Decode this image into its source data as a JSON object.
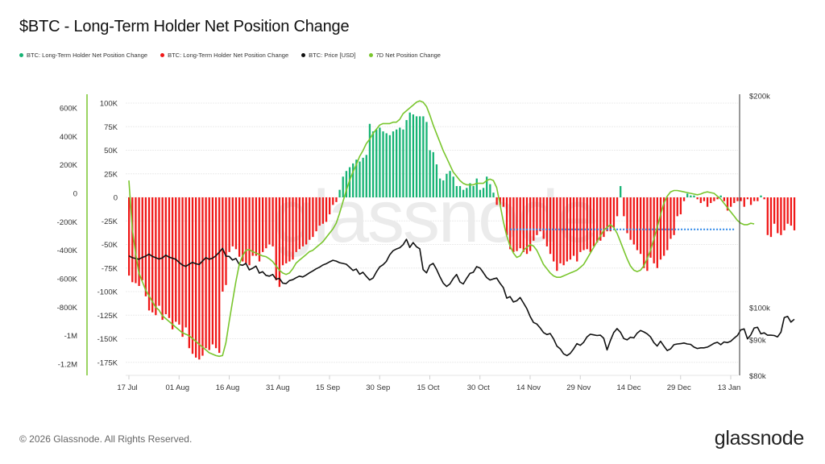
{
  "header": {
    "title": "$BTC - Long-Term Holder Net Position Change"
  },
  "legend": [
    {
      "label": "BTC: Long-Term Holder Net Position Change",
      "color": "#16b374",
      "icon": "dot-icon"
    },
    {
      "label": "BTC: Long-Term Holder Net Position Change",
      "color": "#f01818",
      "icon": "dot-icon"
    },
    {
      "label": "BTC: Price [USD]",
      "color": "#111111",
      "icon": "dot-icon"
    },
    {
      "label": "7D Net Position Change",
      "color": "#7ac62e",
      "icon": "dot-icon"
    }
  ],
  "footer": {
    "copyright": "© 2026 Glassnode. All Rights Reserved.",
    "logo": "glassnode",
    "watermark": "glassnode"
  },
  "colors": {
    "positive": "#16b374",
    "negative": "#f01818",
    "price": "#111111",
    "seven_day": "#7ac62e",
    "reference_line": "#2b86e8",
    "left_axis_line": "#7ac62e",
    "right_axis_line": "#333333"
  },
  "chart_data": {
    "type": "bar",
    "title": "$BTC - Long-Term Holder Net Position Change",
    "start_date": "17 Jul",
    "x_tick_labels": [
      "17 Jul",
      "01 Aug",
      "16 Aug",
      "31 Aug",
      "15 Sep",
      "30 Sep",
      "15 Oct",
      "30 Oct",
      "14 Nov",
      "29 Nov",
      "14 Dec",
      "29 Dec",
      "13 Jan"
    ],
    "x_tick_day_offsets": [
      0,
      15,
      30,
      45,
      60,
      75,
      90,
      105,
      120,
      135,
      150,
      165,
      180
    ],
    "axes": {
      "seven_day": {
        "ticks": [
          "600K",
          "400K",
          "200K",
          "0",
          "-200K",
          "-400K",
          "-600K",
          "-800K",
          "-1M",
          "-1.2M"
        ],
        "tick_values": [
          600000,
          400000,
          200000,
          0,
          -200000,
          -400000,
          -600000,
          -800000,
          -1000000,
          -1200000
        ],
        "range": [
          -1200000,
          600000
        ],
        "side": "far-left"
      },
      "daily": {
        "ticks": [
          "100K",
          "75K",
          "50K",
          "25K",
          "0",
          "-25K",
          "-50K",
          "-75K",
          "-100K",
          "-125K",
          "-150K",
          "-175K"
        ],
        "tick_values": [
          100000,
          75000,
          50000,
          25000,
          0,
          -25000,
          -50000,
          -75000,
          -100000,
          -125000,
          -150000,
          -175000
        ],
        "range": [
          -175000,
          100000
        ],
        "side": "left"
      },
      "price": {
        "ticks": [
          "$200k",
          "$100k",
          "$90k",
          "$80k"
        ],
        "tick_values": [
          200000,
          100000,
          90000,
          80000
        ],
        "scale": "log",
        "side": "right"
      }
    },
    "reference_line": {
      "value_daily_k": -34,
      "from_day": 114,
      "to_day": 181,
      "style": "dotted"
    },
    "series": [
      {
        "name": "BTC: Long-Term Holder Net Position Change (daily, K BTC)",
        "axis": "daily",
        "values": [
          -83,
          -90,
          -91,
          -94,
          -88,
          -105,
          -120,
          -122,
          -125,
          -115,
          -130,
          -124,
          -128,
          -140,
          -132,
          -135,
          -148,
          -138,
          -160,
          -166,
          -170,
          -172,
          -168,
          -160,
          -162,
          -156,
          -160,
          -165,
          -100,
          -93,
          -58,
          -52,
          -55,
          -63,
          -68,
          -70,
          -72,
          -62,
          -62,
          -68,
          -58,
          -54,
          -50,
          -52,
          -88,
          -95,
          -72,
          -70,
          -68,
          -66,
          -58,
          -55,
          -52,
          -50,
          -45,
          -42,
          -36,
          -30,
          -28,
          -26,
          -18,
          -8,
          -5,
          8,
          22,
          28,
          32,
          36,
          40,
          38,
          42,
          45,
          78,
          70,
          72,
          74,
          70,
          68,
          66,
          70,
          72,
          74,
          72,
          82,
          90,
          88,
          86,
          86,
          86,
          80,
          50,
          48,
          35,
          20,
          18,
          25,
          28,
          22,
          12,
          12,
          8,
          10,
          15,
          12,
          20,
          8,
          10,
          22,
          14,
          5,
          -8,
          -8,
          -10,
          -40,
          -55,
          -58,
          -57,
          -54,
          -58,
          -60,
          -57,
          -46,
          -40,
          -36,
          -44,
          -52,
          -60,
          -68,
          -78,
          -70,
          -72,
          -68,
          -66,
          -62,
          -68,
          -58,
          -56,
          -55,
          -58,
          -52,
          -48,
          -46,
          -42,
          -36,
          -36,
          -32,
          -20,
          12,
          -20,
          -38,
          -45,
          -50,
          -56,
          -60,
          -75,
          -78,
          -64,
          -70,
          -75,
          -66,
          -62,
          -56,
          -44,
          -40,
          -20,
          -18,
          -4,
          4,
          2,
          2,
          -2,
          -6,
          -4,
          -10,
          -6,
          -4,
          -2,
          2,
          -4,
          -14,
          -10,
          -6,
          -4,
          -4,
          -10,
          -2,
          -8,
          -4,
          -4,
          2,
          -2,
          -40,
          -42,
          -28,
          -38,
          -40,
          -35,
          -28,
          -30,
          -35
        ]
      },
      {
        "name": "7D Net Position Change",
        "axis": "seven_day",
        "values": [
          90,
          -250,
          -420,
          -560,
          -620,
          -680,
          -720,
          -760,
          -800,
          -820,
          -860,
          -880,
          -900,
          -920,
          -940,
          -960,
          -980,
          -990,
          -1000,
          -1020,
          -1040,
          -1060,
          -1080,
          -1100,
          -1120,
          -1130,
          -1140,
          -1145,
          -1140,
          -1050,
          -900,
          -760,
          -620,
          -500,
          -440,
          -400,
          -395,
          -410,
          -420,
          -430,
          -440,
          -445,
          -460,
          -480,
          -510,
          -540,
          -560,
          -570,
          -560,
          -530,
          -490,
          -470,
          -450,
          -430,
          -410,
          -400,
          -380,
          -360,
          -340,
          -310,
          -280,
          -250,
          -210,
          -140,
          -60,
          20,
          90,
          150,
          200,
          260,
          300,
          350,
          380,
          420,
          450,
          480,
          490,
          490,
          490,
          500,
          500,
          520,
          560,
          580,
          600,
          620,
          640,
          650,
          640,
          610,
          550,
          480,
          420,
          360,
          300,
          250,
          200,
          150,
          120,
          90,
          70,
          60,
          60,
          60,
          70,
          70,
          70,
          90,
          100,
          90,
          40,
          -80,
          -200,
          -300,
          -370,
          -420,
          -450,
          -440,
          -400,
          -380,
          -360,
          -370,
          -400,
          -450,
          -500,
          -530,
          -560,
          -580,
          -590,
          -590,
          -580,
          -570,
          -560,
          -550,
          -540,
          -520,
          -500,
          -460,
          -420,
          -380,
          -340,
          -300,
          -260,
          -240,
          -220,
          -240,
          -280,
          -340,
          -400,
          -460,
          -510,
          -540,
          -550,
          -540,
          -510,
          -460,
          -400,
          -320,
          -240,
          -150,
          -70,
          -20,
          10,
          20,
          20,
          15,
          10,
          5,
          0,
          -5,
          -10,
          -5,
          5,
          10,
          5,
          0,
          -20,
          -40,
          -70,
          -100,
          -130,
          -160,
          -190,
          -210,
          -220,
          -220,
          -210,
          -215
        ]
      },
      {
        "name": "BTC: Price [USD]",
        "axis": "price",
        "values": [
          118500,
          117800,
          117500,
          117200,
          117900,
          118400,
          119200,
          118300,
          117800,
          117300,
          117700,
          118800,
          118000,
          117600,
          117200,
          116000,
          115000,
          114500,
          115300,
          116000,
          115500,
          115200,
          116500,
          117800,
          117200,
          117600,
          118500,
          119900,
          121500,
          118400,
          118300,
          116900,
          117500,
          115200,
          114900,
          115600,
          113200,
          113800,
          114600,
          112000,
          112500,
          111200,
          110900,
          111500,
          109800,
          110100,
          108400,
          108200,
          109300,
          109600,
          110300,
          110900,
          110600,
          111300,
          112100,
          112800,
          113600,
          114200,
          115000,
          115500,
          116200,
          116800,
          116500,
          115900,
          115600,
          115300,
          114200,
          113000,
          113500,
          111600,
          112300,
          110800,
          109500,
          110200,
          112400,
          114300,
          115100,
          116400,
          118900,
          120500,
          121200,
          121700,
          122900,
          125100,
          121800,
          123800,
          122100,
          121300,
          113300,
          112100,
          114900,
          115600,
          113400,
          110700,
          108400,
          107200,
          108100,
          110000,
          111500,
          108800,
          108100,
          110100,
          111900,
          112300,
          114400,
          113900,
          112200,
          110400,
          109500,
          109900,
          110200,
          108300,
          106800,
          103200,
          103700,
          101900,
          102300,
          103400,
          101600,
          99700,
          97200,
          95300,
          94800,
          93600,
          92200,
          91600,
          91900,
          90300,
          88200,
          87400,
          86000,
          85500,
          86100,
          87400,
          88900,
          88400,
          89300,
          90900,
          91700,
          91500,
          91300,
          91400,
          90500,
          87100,
          89800,
          92200,
          93400,
          92300,
          90400,
          90000,
          90800,
          90600,
          92000,
          92800,
          92400,
          91800,
          90900,
          89200,
          88200,
          89600,
          88200,
          86900,
          87400,
          88600,
          88800,
          88900,
          89100,
          88800,
          88700,
          87900,
          87500,
          87700,
          87700,
          87900,
          88400,
          89000,
          89300,
          88600,
          89400,
          89200,
          89600,
          90500,
          91300,
          93000,
          93300,
          90300,
          91500,
          93600,
          93800,
          91800,
          92100,
          91400,
          91400,
          91300,
          90900,
          92300,
          96800,
          97200,
          95400,
          96300
        ]
      }
    ]
  }
}
